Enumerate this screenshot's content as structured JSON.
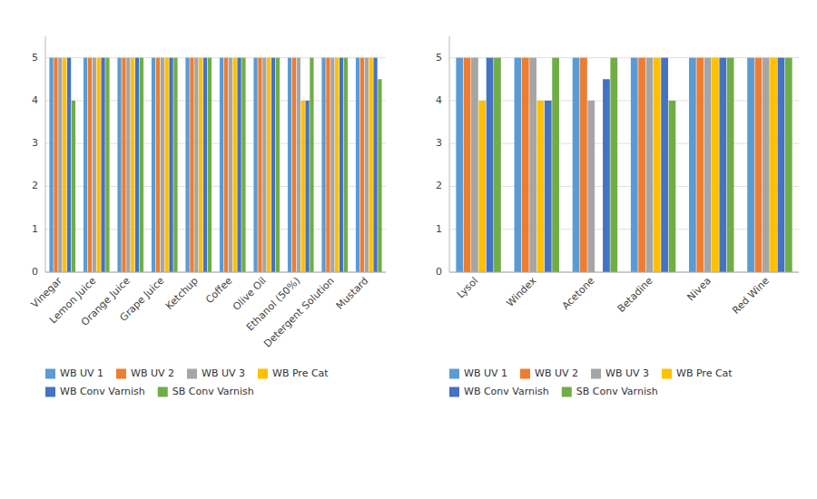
{
  "chart_data": [
    {
      "type": "bar",
      "categories": [
        "Vinegar",
        "Lemon Juice",
        "Orange Juice",
        "Grape Juice",
        "Ketchup",
        "Coffee",
        "Olive Oil",
        "Ethanol (50%)",
        "Detergent Solution",
        "Mustard"
      ],
      "series": [
        {
          "name": "WB UV 1",
          "color": "#5b9bd5",
          "values": [
            5,
            5,
            5,
            5,
            5,
            5,
            5,
            5,
            5,
            5
          ]
        },
        {
          "name": "WB UV 2",
          "color": "#ed7d31",
          "values": [
            5,
            5,
            5,
            5,
            5,
            5,
            5,
            5,
            5,
            5
          ]
        },
        {
          "name": "WB UV 3",
          "color": "#a5a5a5",
          "values": [
            5,
            5,
            5,
            5,
            5,
            5,
            5,
            5,
            5,
            5
          ]
        },
        {
          "name": "WB Pre Cat",
          "color": "#ffc000",
          "values": [
            5,
            5,
            5,
            5,
            5,
            5,
            5,
            4,
            5,
            5
          ]
        },
        {
          "name": "WB Conv Varnish",
          "color": "#4472c4",
          "values": [
            5,
            5,
            5,
            5,
            5,
            5,
            5,
            4,
            5,
            5
          ]
        },
        {
          "name": "SB Conv Varnish",
          "color": "#70ad47",
          "values": [
            4,
            5,
            5,
            5,
            5,
            5,
            5,
            5,
            5,
            4.5
          ]
        }
      ],
      "ylim": [
        0,
        5.5
      ],
      "yticks": [
        0,
        1,
        2,
        3,
        4,
        5
      ],
      "grid": true,
      "legend": "bottom"
    },
    {
      "type": "bar",
      "categories": [
        "Lysol",
        "Windex",
        "Acetone",
        "Betadine",
        "Nivea",
        "Red Wine"
      ],
      "series": [
        {
          "name": "WB UV 1",
          "color": "#5b9bd5",
          "values": [
            5,
            5,
            5,
            5,
            5,
            5
          ]
        },
        {
          "name": "WB UV 2",
          "color": "#ed7d31",
          "values": [
            5,
            5,
            5,
            5,
            5,
            5
          ]
        },
        {
          "name": "WB UV 3",
          "color": "#a5a5a5",
          "values": [
            5,
            5,
            4,
            5,
            5,
            5
          ]
        },
        {
          "name": "WB Pre Cat",
          "color": "#ffc000",
          "values": [
            4,
            4,
            0,
            5,
            5,
            5
          ]
        },
        {
          "name": "WB Conv Varnish",
          "color": "#4472c4",
          "values": [
            5,
            4,
            4.5,
            5,
            5,
            5
          ]
        },
        {
          "name": "SB Conv Varnish",
          "color": "#70ad47",
          "values": [
            5,
            5,
            5,
            4,
            5,
            5
          ]
        }
      ],
      "ylim": [
        0,
        5.5
      ],
      "yticks": [
        0,
        1,
        2,
        3,
        4,
        5
      ],
      "grid": true,
      "legend": "bottom"
    }
  ]
}
